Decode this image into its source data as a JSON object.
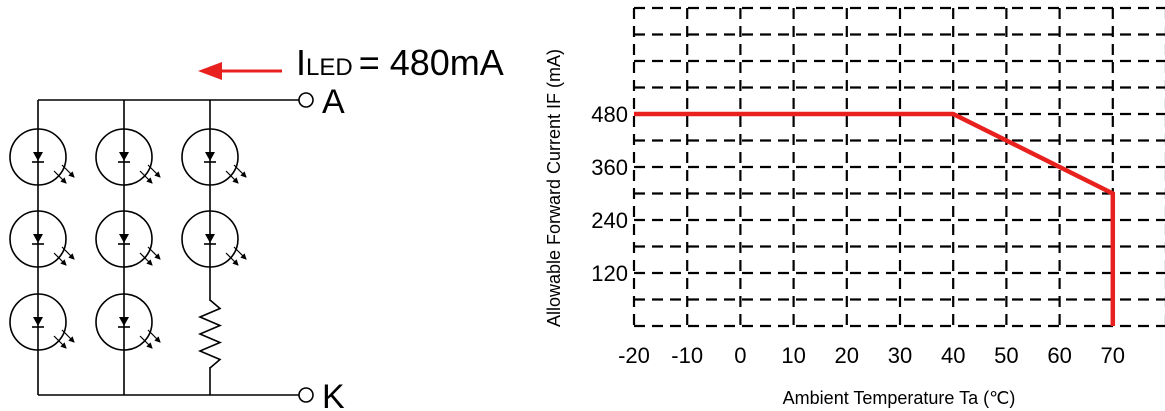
{
  "circuit": {
    "current_symbol": "I",
    "current_subscript": "LED",
    "current_value": "= 480mA",
    "terminal_anode": "A",
    "terminal_cathode": "K",
    "arrow_color": "#e8211f",
    "rows": 3,
    "strings": [
      {
        "leds": 3,
        "resistor": false
      },
      {
        "leds": 3,
        "resistor": false
      },
      {
        "leds": 2,
        "resistor": true
      }
    ]
  },
  "chart_data": {
    "type": "line",
    "title": "",
    "xlabel": "Ambient Temperature Ta (℃)",
    "ylabel": "Allowable Forward Current IF (mA)",
    "x_ticks": [
      -20,
      -10,
      0,
      10,
      20,
      30,
      40,
      50,
      60,
      70
    ],
    "x_tick_labels": [
      "-20",
      "-10",
      "0",
      "10",
      "20",
      "30",
      "40",
      "50",
      "60",
      "70"
    ],
    "y_ticks": [
      120,
      240,
      360,
      480
    ],
    "y_tick_labels": [
      "120",
      "240",
      "360",
      "480"
    ],
    "xlim": [
      -20,
      80
    ],
    "ylim": [
      0,
      720
    ],
    "grid": true,
    "series": [
      {
        "color": "#e8211f",
        "x": [
          -20,
          40,
          70,
          70
        ],
        "y": [
          480,
          480,
          300,
          0
        ]
      }
    ]
  }
}
